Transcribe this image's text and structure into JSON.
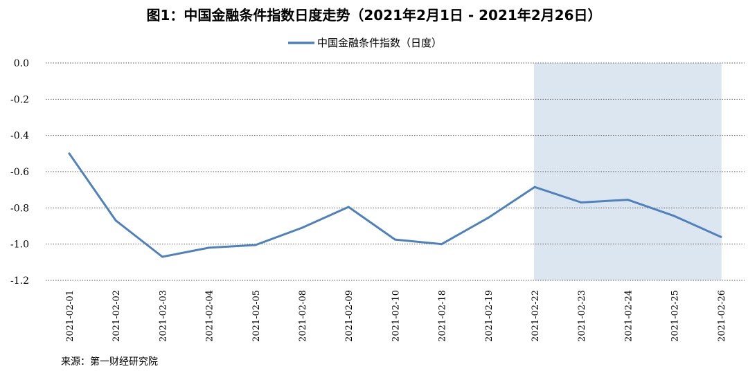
{
  "chart_data": {
    "type": "line",
    "title": "图1：中国金融条件指数日度走势（2021年2月1日 - 2021年2月26日）",
    "categories": [
      "2021-02-01",
      "2021-02-02",
      "2021-02-03",
      "2021-02-04",
      "2021-02-05",
      "2021-02-08",
      "2021-02-09",
      "2021-02-10",
      "2021-02-18",
      "2021-02-19",
      "2021-02-22",
      "2021-02-23",
      "2021-02-24",
      "2021-02-25",
      "2021-02-26"
    ],
    "series": [
      {
        "name": "中国金融条件指数（日度）",
        "values": [
          -0.5,
          -0.87,
          -1.07,
          -1.02,
          -1.005,
          -0.91,
          -0.795,
          -0.975,
          -1.0,
          -0.855,
          -0.685,
          -0.77,
          -0.755,
          -0.845,
          -0.96
        ],
        "color": "#4F81BD"
      }
    ],
    "ylim": [
      -1.2,
      0.0
    ],
    "yticks": [
      "0.0",
      "-0.2",
      "-0.4",
      "-0.6",
      "-0.8",
      "-1.0",
      "-1.2"
    ],
    "ytick_values": [
      0.0,
      -0.2,
      -0.4,
      -0.6,
      -0.8,
      -1.0,
      -1.2
    ],
    "grid": true,
    "grid_style": "dotted",
    "legend_position": "top-center",
    "highlight_range": [
      "2021-02-22",
      "2021-02-26"
    ],
    "highlight_color": "#DCE6F1",
    "xlabel": "",
    "ylabel": "",
    "source": "来源：第一财经研究院"
  }
}
